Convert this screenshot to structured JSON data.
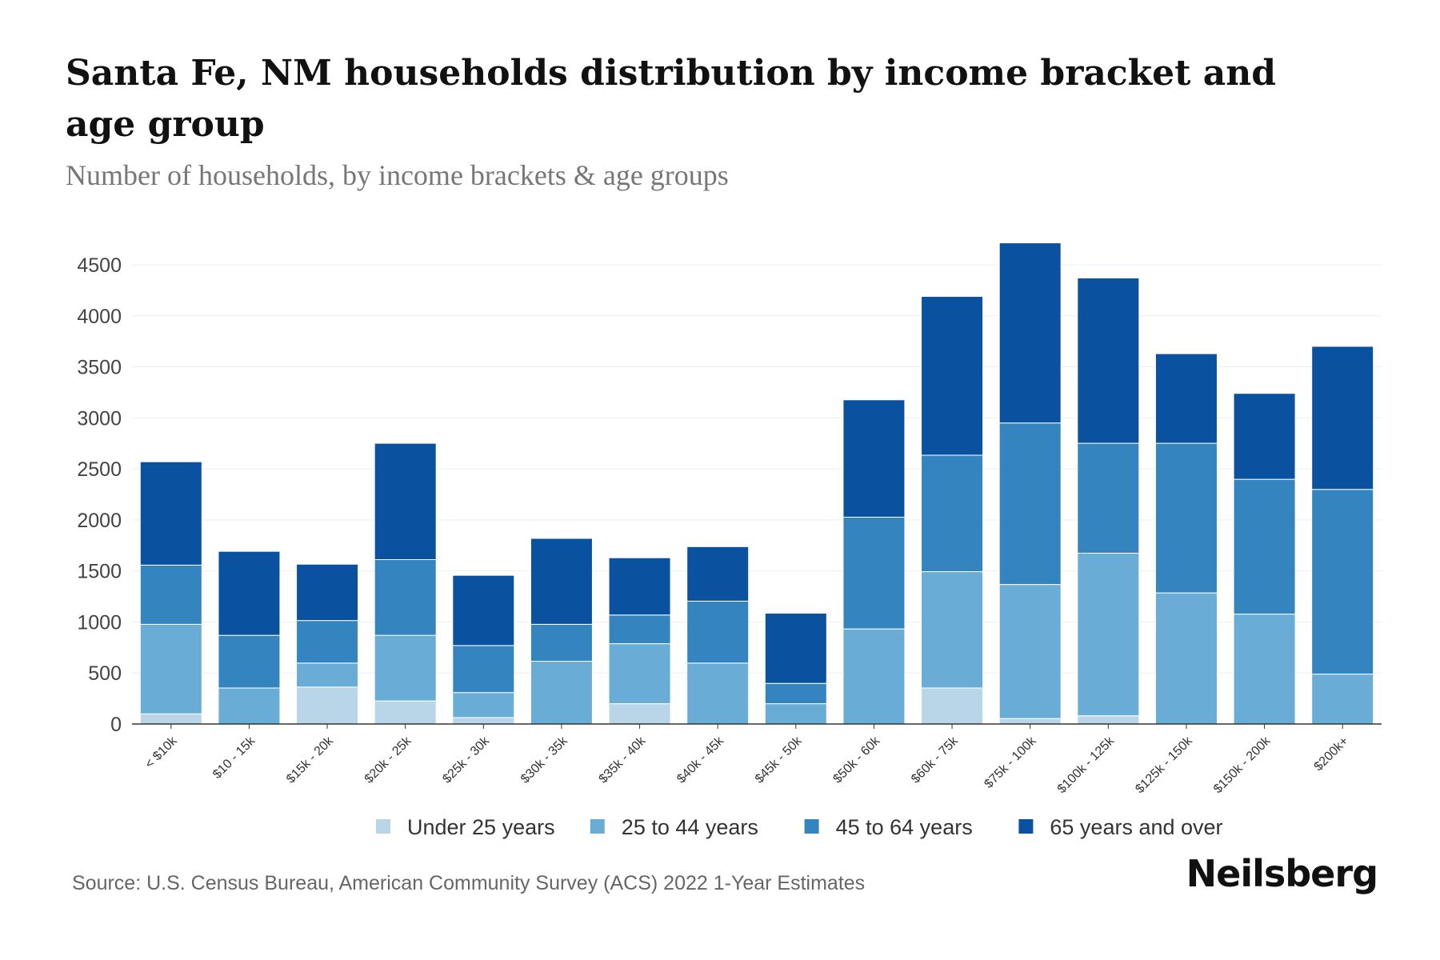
{
  "title": "Santa Fe, NM households distribution by income bracket and age group",
  "subtitle": "Number of households, by income brackets & age groups",
  "source": "Source: U.S. Census Bureau, American Community Survey (ACS) 2022 1-Year Estimates",
  "logo": "Neilsberg",
  "chart_data": {
    "type": "bar",
    "stacked": true,
    "title": "Santa Fe, NM households distribution by income bracket and age group",
    "xlabel": "",
    "ylabel": "",
    "ylim": [
      0,
      4700
    ],
    "yticks": [
      0,
      500,
      1000,
      1500,
      2000,
      2500,
      3000,
      3500,
      4000,
      4500
    ],
    "grid": true,
    "legend_position": "bottom",
    "categories": [
      "< $10k",
      "$10 - 15k",
      "$15k - 20k",
      "$20k - 25k",
      "$25k - 30k",
      "$30k - 35k",
      "$35k - 40k",
      "$40k - 45k",
      "$45k - 50k",
      "$50k - 60k",
      "$60k - 75k",
      "$75k - 100k",
      "$100k - 125k",
      "$125k - 150k",
      "$150k - 200k",
      "$200k+"
    ],
    "series": [
      {
        "name": "Under 25 years",
        "color": "#b9d6e8",
        "values": [
          100,
          0,
          362,
          226,
          63,
          0,
          199,
          0,
          0,
          0,
          353,
          54,
          81,
          0,
          0,
          0
        ]
      },
      {
        "name": "25 to 44 years",
        "color": "#69acd6",
        "values": [
          877,
          353,
          235,
          643,
          245,
          615,
          588,
          597,
          199,
          932,
          1140,
          1313,
          1593,
          1285,
          1077,
          489
        ]
      },
      {
        "name": "45 to 64 years",
        "color": "#3384bf",
        "values": [
          580,
          516,
          417,
          742,
          461,
          362,
          281,
          607,
          199,
          1095,
          1141,
          1583,
          1077,
          1466,
          1321,
          1810
        ]
      },
      {
        "name": "65 years and over",
        "color": "#0a51a0",
        "values": [
          1013,
          823,
          552,
          1140,
          688,
          842,
          561,
          534,
          688,
          1150,
          1556,
          1765,
          1620,
          878,
          842,
          1402
        ]
      }
    ]
  }
}
